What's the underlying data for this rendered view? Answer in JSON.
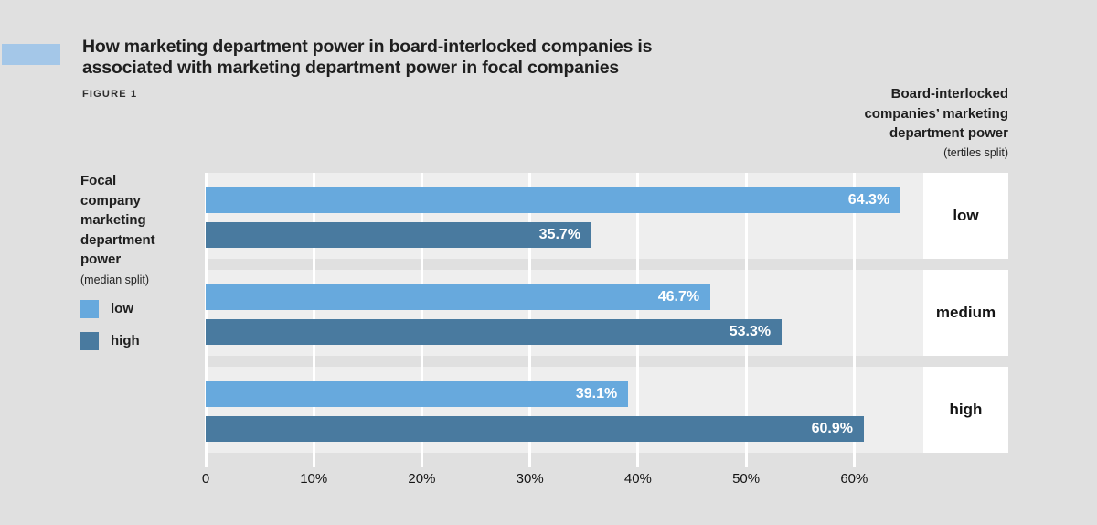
{
  "header": {
    "title_line1": "How marketing department power in board-interlocked companies is",
    "title_line2": "associated with marketing department power in focal companies",
    "figure_label": "FIGURE 1",
    "accent_color": "#a4c7e8"
  },
  "right_header": {
    "lines": [
      "Board-interlocked",
      "companies’ marketing",
      "department power"
    ],
    "subtitle": "(tertiles split)"
  },
  "left_label": {
    "lines": [
      "Focal",
      "company",
      "marketing",
      "department",
      "power"
    ],
    "subtitle": "(median split)"
  },
  "legend": [
    {
      "label": "low",
      "color": "#67a9dd"
    },
    {
      "label": "high",
      "color": "#497a9f"
    }
  ],
  "colors": {
    "page_background": "#e0e0e0",
    "band_background": "#eeeeee",
    "gridline": "#ffffff",
    "tertile_box": "#ffffff",
    "value_text": "#ffffff"
  },
  "chart_data": {
    "type": "bar",
    "orientation": "horizontal",
    "title": "How marketing department power in board-interlocked companies is associated with marketing department power in focal companies",
    "categories": [
      "low",
      "medium",
      "high"
    ],
    "series": [
      {
        "name": "low",
        "color": "#67a9dd",
        "values": [
          64.3,
          46.7,
          39.1
        ]
      },
      {
        "name": "high",
        "color": "#497a9f",
        "values": [
          35.7,
          53.3,
          60.9
        ]
      }
    ],
    "value_suffix": "%",
    "x_ticks": [
      "0",
      "10%",
      "20%",
      "30%",
      "40%",
      "50%",
      "60%"
    ],
    "x_tick_values": [
      0,
      10,
      20,
      30,
      40,
      50,
      60
    ],
    "xlim": [
      0,
      66.4
    ],
    "grid": true,
    "legend_position": "left"
  }
}
